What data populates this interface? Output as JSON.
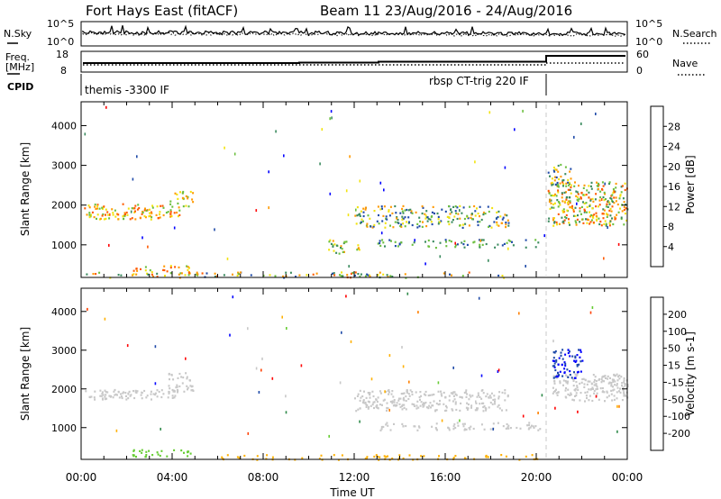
{
  "header": {
    "station": "Fort Hays East (fitACF)",
    "beam": "Beam 11 23/Aug/2016 - 24/Aug/2016"
  },
  "noise_panel": {
    "left_label": "N.Sky",
    "right_label": "N.Search",
    "left_ticks": [
      "10^5",
      "10^0"
    ],
    "right_ticks": [
      "10^5",
      "10^0"
    ]
  },
  "freq_panel": {
    "left_label_1": "Freq.",
    "left_label_2": "[MHz]",
    "right_label": "Nave",
    "left_ticks": [
      "18",
      "8"
    ],
    "right_ticks": [
      "60",
      "0"
    ],
    "cpid_label": "CPID",
    "cpid_1": "themis -3300 IF",
    "cpid_2": "rbsp CT-trig 220 IF"
  },
  "colors": {
    "axis": "#000000",
    "gap_line": "#c8c8c8",
    "ground_scatter": "#bdbdbd"
  },
  "chart_data": [
    {
      "type": "heatmap",
      "name": "power",
      "xlabel": "",
      "ylabel": "Slant Range [km]",
      "xlim": [
        0,
        24
      ],
      "ylim": [
        180,
        4600
      ],
      "yticks": [
        "1000",
        "2000",
        "3000",
        "4000"
      ],
      "colorbar_label": "Power [dB]",
      "colorbar_ticks": [
        "4",
        "8",
        "12",
        "16",
        "20",
        "24",
        "28"
      ],
      "colorbar_colors": [
        "#0000ff",
        "#1f4aa8",
        "#3a8a5e",
        "#6bbf3f",
        "#f2e30f",
        "#ff9900",
        "#ff5a00",
        "#ff0000"
      ],
      "clusters": [
        {
          "t": [
            0.1,
            4.3
          ],
          "r": [
            1650,
            2050
          ],
          "level": [
            3,
            6
          ],
          "density": 0.55
        },
        {
          "t": [
            3.8,
            4.9
          ],
          "r": [
            1950,
            2400
          ],
          "level": [
            3,
            5
          ],
          "density": 0.4
        },
        {
          "t": [
            2.2,
            4.8
          ],
          "r": [
            250,
            500
          ],
          "level": [
            3,
            6
          ],
          "density": 0.4
        },
        {
          "t": [
            0.0,
            20.5
          ],
          "r": [
            190,
            330
          ],
          "level": [
            1,
            6
          ],
          "density": 0.25
        },
        {
          "t": [
            10.8,
            12.2
          ],
          "r": [
            800,
            1150
          ],
          "level": [
            2,
            5
          ],
          "density": 0.45
        },
        {
          "t": [
            12.0,
            18.8
          ],
          "r": [
            1450,
            2000
          ],
          "level": [
            1,
            5
          ],
          "density": 0.45
        },
        {
          "t": [
            13.0,
            20.3
          ],
          "r": [
            950,
            1150
          ],
          "level": [
            1,
            3
          ],
          "density": 0.35
        },
        {
          "t": [
            20.5,
            24.0
          ],
          "r": [
            1500,
            2600
          ],
          "level": [
            2,
            6
          ],
          "density": 0.6
        },
        {
          "t": [
            20.5,
            21.5
          ],
          "r": [
            2500,
            3050
          ],
          "level": [
            1,
            5
          ],
          "density": 0.45
        }
      ]
    },
    {
      "type": "heatmap",
      "name": "velocity",
      "xlabel": "Time UT",
      "ylabel": "Slant Range [km]",
      "xlim": [
        0,
        24
      ],
      "ylim": [
        180,
        4600
      ],
      "xticks": [
        "00:00",
        "04:00",
        "08:00",
        "12:00",
        "16:00",
        "20:00",
        "00:00"
      ],
      "yticks": [
        "1000",
        "2000",
        "3000",
        "4000"
      ],
      "colorbar_label": "Velocity [m s-1]",
      "colorbar_ticks": [
        "200",
        "100",
        "50",
        "15",
        "-15",
        "-50",
        "-100",
        "-200"
      ],
      "colorbar_colors": [
        "#0000ff",
        "#1f4aa8",
        "#2f8a4a",
        "#66cc33",
        "#c8c8c8",
        "#ffb000",
        "#ff8000",
        "#ff4000",
        "#ff0000"
      ],
      "clusters": [
        {
          "t": [
            0.1,
            4.3
          ],
          "r": [
            1750,
            2000
          ],
          "level": [
            4,
            4
          ],
          "density": 0.7
        },
        {
          "t": [
            3.8,
            4.9
          ],
          "r": [
            1950,
            2450
          ],
          "level": [
            4,
            4
          ],
          "density": 0.5
        },
        {
          "t": [
            2.2,
            4.8
          ],
          "r": [
            250,
            450
          ],
          "level": [
            3,
            3
          ],
          "density": 0.45
        },
        {
          "t": [
            6.0,
            20.5
          ],
          "r": [
            190,
            320
          ],
          "level": [
            5,
            5
          ],
          "density": 0.3
        },
        {
          "t": [
            12.0,
            18.8
          ],
          "r": [
            1450,
            2000
          ],
          "level": [
            4,
            4
          ],
          "density": 0.55
        },
        {
          "t": [
            13.0,
            20.3
          ],
          "r": [
            950,
            1150
          ],
          "level": [
            4,
            4
          ],
          "density": 0.4
        },
        {
          "t": [
            20.7,
            24.0
          ],
          "r": [
            1700,
            2400
          ],
          "level": [
            4,
            4
          ],
          "density": 0.65
        },
        {
          "t": [
            20.7,
            22.0
          ],
          "r": [
            2300,
            3050
          ],
          "level": [
            0,
            1
          ],
          "density": 0.6
        }
      ]
    }
  ]
}
